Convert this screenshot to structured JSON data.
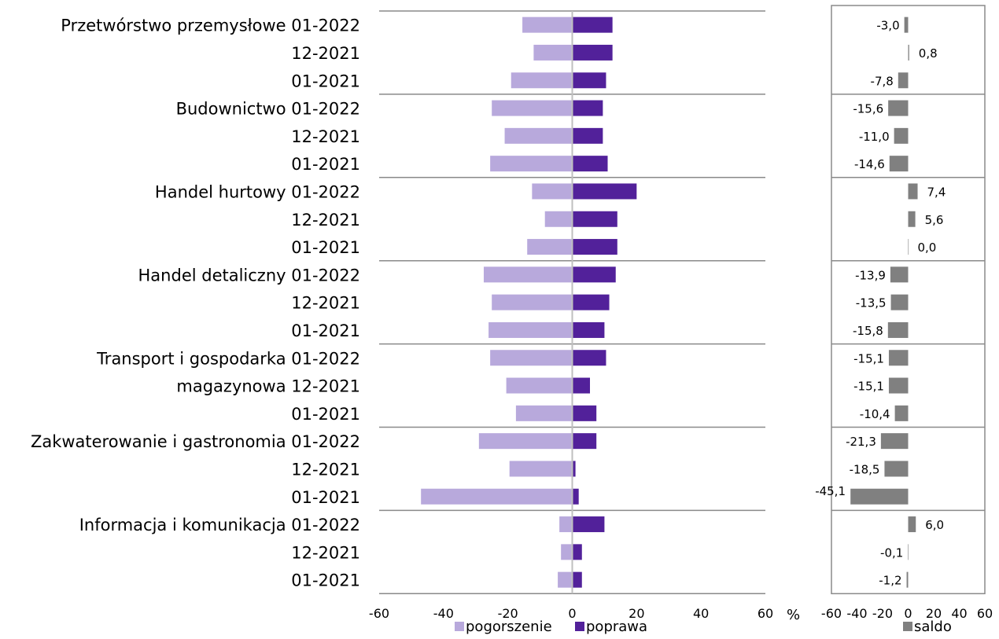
{
  "chart_data": [
    {
      "type": "bar",
      "orientation": "horizontal",
      "stacked": "diverging",
      "sectors": [
        "Przetwórstwo przemysłowe",
        "Budownictwo",
        "Handel hurtowy",
        "Handel detaliczny",
        "Transport i gospodarka magazynowa",
        "Zakwaterowanie i gastronomia",
        "Informacja i komunikacja"
      ],
      "periods": [
        "01-2022",
        "12-2021",
        "01-2021"
      ],
      "category_labels": [
        "Przetwórstwo przemysłowe 01-2022",
        "12-2021",
        "01-2021",
        "Budownictwo 01-2022",
        "12-2021",
        "01-2021",
        "Handel hurtowy 01-2022",
        "12-2021",
        "01-2021",
        "Handel detaliczny 01-2022",
        "12-2021",
        "01-2021",
        "Transport i gospodarka 01-2022",
        "magazynowa  12-2021",
        "01-2021",
        "Zakwaterowanie i gastronomia 01-2022",
        "12-2021",
        "01-2021",
        "Informacja i komunikacja 01-2022",
        "12-2021",
        "01-2021"
      ],
      "series": [
        {
          "name": "pogorszenie",
          "color": "#b8a9dc",
          "values": [
            -15.5,
            -12,
            -19,
            -25,
            -21,
            -25.5,
            -12.5,
            -8.5,
            -14,
            -27.5,
            -25,
            -26,
            -25.5,
            -20.5,
            -17.5,
            -29,
            -19.5,
            -47,
            -4,
            -3.5,
            -4.5
          ]
        },
        {
          "name": "poprawa",
          "color": "#52219a",
          "values": [
            12.5,
            12.5,
            10.5,
            9.5,
            9.5,
            11,
            20,
            14,
            14,
            13.5,
            11.5,
            10,
            10.5,
            5.5,
            7.5,
            7.5,
            1,
            2,
            10,
            3,
            3
          ]
        }
      ],
      "xlim": [
        -60,
        60
      ],
      "xticks": [
        -60,
        -40,
        -20,
        0,
        20,
        40,
        60
      ],
      "xtick_labels": [
        "-60",
        "-40",
        "-20",
        "0",
        "20",
        "40",
        "60"
      ],
      "xunit": "%",
      "legend": "bottom"
    },
    {
      "type": "bar",
      "orientation": "horizontal",
      "series": [
        {
          "name": "saldo",
          "color": "#808080",
          "values": [
            -3.0,
            0.8,
            -7.8,
            -15.6,
            -11.0,
            -14.6,
            7.4,
            5.6,
            0.0,
            -13.9,
            -13.5,
            -15.8,
            -15.1,
            -15.1,
            -10.4,
            -21.3,
            -18.5,
            -45.1,
            6.0,
            -0.1,
            -1.2
          ],
          "labels": [
            "-3,0",
            "0,8",
            "-7,8",
            "-15,6",
            "-11,0",
            "-14,6",
            "7,4",
            "5,6",
            "0,0",
            "-13,9",
            "-13,5",
            "-15,8",
            "-15,1",
            "-15,1",
            "-10,4",
            "-21,3",
            "-18,5",
            "-45,1",
            "6,0",
            "-0,1",
            "-1,2"
          ]
        }
      ],
      "xlim": [
        -60,
        60
      ],
      "xticks": [
        -60,
        -40,
        -20,
        0,
        20,
        40,
        60
      ],
      "xtick_labels": [
        "-60",
        "-40",
        "-20",
        "0",
        "20",
        "40",
        "60"
      ],
      "legend": "bottom"
    }
  ]
}
